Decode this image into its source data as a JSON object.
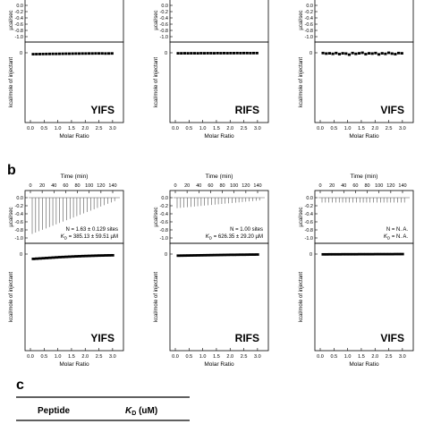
{
  "common": {
    "raw_ylabel": "µcal/sec",
    "int_ylabel": "kcal/mole of injectant",
    "raw_yticks": [
      "0.0",
      "-0.2",
      "-0.4",
      "-0.6",
      "-0.8",
      "-1.0"
    ],
    "int_ytick": "0",
    "time_label": "Time (min)",
    "time_ticks": [
      "0",
      "20",
      "40",
      "60",
      "80",
      "100",
      "120",
      "140"
    ],
    "molar_label": "Molar Ratio",
    "molar_ticks": [
      "0.0",
      "0.5",
      "1.0",
      "1.5",
      "2.0",
      "2.5",
      "3.0"
    ]
  },
  "panel_a": {
    "titration_labels": [
      "YIFS",
      "RIFS",
      "VIFS"
    ]
  },
  "panel_b": {
    "letter": "b",
    "titration_labels": [
      "YIFS",
      "RIFS",
      "VIFS"
    ],
    "fit_results": [
      [
        "N = 1.63 ± 0.129 sites",
        "K = 385.13 ± 59.51 µM"
      ],
      [
        "N = 1.00 sites",
        "K = 626.35 ± 29.20 µM"
      ],
      [
        "N = N. A.",
        "K = N. A."
      ]
    ],
    "fit_subscript": "D"
  },
  "panel_c": {
    "letter": "c",
    "col_peptide": "Peptide",
    "col_kd": "K",
    "col_kd_sub": "D",
    "col_kd_unit": " (uM)"
  },
  "chart_data": [
    {
      "type": "scatter",
      "panel": "a",
      "name": "YIFS",
      "xlabel": "Molar Ratio",
      "ylabel": "kcal/mole of injectant",
      "xlim": [
        0,
        3.2
      ],
      "x": [
        0.1,
        0.22,
        0.34,
        0.46,
        0.58,
        0.7,
        0.82,
        0.94,
        1.06,
        1.18,
        1.3,
        1.42,
        1.54,
        1.66,
        1.78,
        1.9,
        2.02,
        2.14,
        2.26,
        2.38,
        2.5,
        2.62,
        2.74,
        2.86,
        2.98
      ],
      "y": [
        -0.26,
        -0.25,
        -0.24,
        -0.23,
        -0.22,
        -0.21,
        -0.2,
        -0.2,
        -0.19,
        -0.18,
        -0.17,
        -0.17,
        -0.16,
        -0.15,
        -0.15,
        -0.14,
        -0.14,
        -0.13,
        -0.13,
        -0.12,
        -0.12,
        -0.12,
        -0.14,
        -0.13,
        -0.12
      ]
    },
    {
      "type": "scatter",
      "panel": "a",
      "name": "RIFS",
      "xlabel": "Molar Ratio",
      "ylabel": "kcal/mole of injectant",
      "xlim": [
        0,
        3.2
      ],
      "x": [
        0.1,
        0.22,
        0.34,
        0.46,
        0.58,
        0.7,
        0.82,
        0.94,
        1.06,
        1.18,
        1.3,
        1.42,
        1.54,
        1.66,
        1.78,
        1.9,
        2.02,
        2.14,
        2.26,
        2.38,
        2.5,
        2.62,
        2.74,
        2.86,
        2.98
      ],
      "y": [
        -0.1,
        -0.1,
        -0.09,
        -0.1,
        -0.09,
        -0.09,
        -0.1,
        -0.08,
        -0.09,
        -0.08,
        -0.08,
        -0.09,
        -0.07,
        -0.08,
        -0.07,
        -0.08,
        -0.07,
        -0.07,
        -0.06,
        -0.07,
        -0.06,
        -0.06,
        -0.07,
        -0.06,
        -0.06
      ]
    },
    {
      "type": "scatter",
      "panel": "a",
      "name": "VIFS",
      "xlabel": "Molar Ratio",
      "ylabel": "kcal/mole of injectant",
      "xlim": [
        0,
        3.2
      ],
      "x": [
        0.1,
        0.22,
        0.34,
        0.46,
        0.58,
        0.7,
        0.82,
        0.94,
        1.06,
        1.18,
        1.3,
        1.42,
        1.54,
        1.66,
        1.78,
        1.9,
        2.02,
        2.14,
        2.26,
        2.38,
        2.5,
        2.62,
        2.74,
        2.86,
        2.98
      ],
      "y": [
        -0.05,
        -0.15,
        -0.1,
        -0.2,
        -0.05,
        -0.25,
        -0.1,
        -0.15,
        -0.35,
        -0.05,
        -0.2,
        -0.1,
        0.0,
        -0.25,
        -0.1,
        -0.15,
        -0.05,
        -0.3,
        -0.1,
        -0.2,
        0.0,
        -0.15,
        -0.25,
        -0.05,
        -0.1
      ]
    },
    {
      "type": "line",
      "panel": "b",
      "name": "YIFS",
      "xlabel": "Molar Ratio",
      "ylabel": "kcal/mole of injectant",
      "xlim": [
        0,
        3.2
      ],
      "x": [
        0.1,
        0.22,
        0.34,
        0.46,
        0.58,
        0.7,
        0.82,
        0.94,
        1.06,
        1.18,
        1.3,
        1.42,
        1.54,
        1.66,
        1.78,
        1.9,
        2.02,
        2.14,
        2.26,
        2.38,
        2.5,
        2.62,
        2.74,
        2.86,
        2.98
      ],
      "y": [
        -0.9,
        -0.86,
        -0.82,
        -0.78,
        -0.74,
        -0.7,
        -0.66,
        -0.62,
        -0.58,
        -0.55,
        -0.52,
        -0.49,
        -0.46,
        -0.43,
        -0.41,
        -0.38,
        -0.36,
        -0.34,
        -0.32,
        -0.3,
        -0.28,
        -0.27,
        -0.25,
        -0.24,
        -0.23
      ]
    },
    {
      "type": "line",
      "panel": "b",
      "name": "RIFS",
      "xlabel": "Molar Ratio",
      "ylabel": "kcal/mole of injectant",
      "xlim": [
        0,
        3.2
      ],
      "x": [
        0.1,
        0.22,
        0.34,
        0.46,
        0.58,
        0.7,
        0.82,
        0.94,
        1.06,
        1.18,
        1.3,
        1.42,
        1.54,
        1.66,
        1.78,
        1.9,
        2.02,
        2.14,
        2.26,
        2.38,
        2.5,
        2.62,
        2.74,
        2.86,
        2.98
      ],
      "y": [
        -0.3,
        -0.29,
        -0.28,
        -0.27,
        -0.26,
        -0.25,
        -0.24,
        -0.23,
        -0.22,
        -0.21,
        -0.2,
        -0.19,
        -0.18,
        -0.17,
        -0.16,
        -0.15,
        -0.14,
        -0.14,
        -0.13,
        -0.12,
        -0.12,
        -0.11,
        -0.1,
        -0.1,
        -0.09
      ]
    },
    {
      "type": "line",
      "panel": "b",
      "name": "VIFS",
      "xlabel": "Molar Ratio",
      "ylabel": "kcal/mole of injectant",
      "xlim": [
        0,
        3.2
      ],
      "x": [
        0.1,
        0.22,
        0.34,
        0.46,
        0.58,
        0.7,
        0.82,
        0.94,
        1.06,
        1.18,
        1.3,
        1.42,
        1.54,
        1.66,
        1.78,
        1.9,
        2.02,
        2.14,
        2.26,
        2.38,
        2.5,
        2.62,
        2.74,
        2.86,
        2.98
      ],
      "y": [
        -0.06,
        -0.06,
        -0.05,
        -0.05,
        -0.05,
        -0.05,
        -0.04,
        -0.04,
        -0.04,
        -0.04,
        -0.04,
        -0.03,
        -0.03,
        -0.03,
        -0.03,
        -0.03,
        -0.02,
        -0.02,
        -0.02,
        -0.02,
        -0.02,
        -0.02,
        -0.01,
        -0.01,
        -0.01
      ]
    }
  ]
}
